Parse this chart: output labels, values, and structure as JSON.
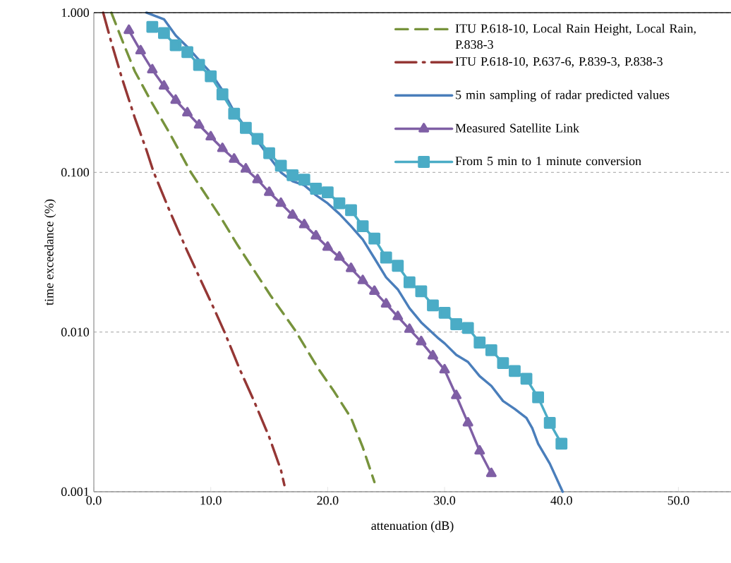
{
  "chart_data": {
    "type": "line",
    "xlabel": "attenuation (dB)",
    "ylabel": "time exceedance (%)",
    "log": "y",
    "grid": "y",
    "legend": "top right",
    "xlim": [
      0,
      54.5
    ],
    "ylim": [
      0.001,
      1
    ],
    "xticks": [
      {
        "value": 0,
        "label": "0.0"
      },
      {
        "value": 10,
        "label": "10.0"
      },
      {
        "value": 20,
        "label": "20.0"
      },
      {
        "value": 30,
        "label": "30.0"
      },
      {
        "value": 40,
        "label": "40.0"
      },
      {
        "value": 50,
        "label": "50.0"
      }
    ],
    "yticks": [
      {
        "value": 0.001,
        "label": "0.001"
      },
      {
        "value": 0.01,
        "label": "0.010"
      },
      {
        "value": 0.1,
        "label": "0.100"
      },
      {
        "value": 1,
        "label": "1.000"
      }
    ],
    "series": [
      {
        "name": "ITU P.618-10, Local Rain Height, Local Rain, P.838-3",
        "color": "#77933c",
        "line_style": "dashed",
        "marker": "none",
        "x": [
          1.5,
          2.5,
          3.5,
          5,
          6.5,
          8.3,
          10.8,
          12.3,
          15.1,
          17.2,
          19.2,
          20.5,
          22,
          23,
          24
        ],
        "values": [
          1,
          0.65,
          0.43,
          0.27,
          0.175,
          0.1,
          0.053,
          0.035,
          0.017,
          0.0103,
          0.0059,
          0.0043,
          0.0029,
          0.0019,
          0.00115
        ]
      },
      {
        "name": "ITU P.618-10, P.637-6, P.839-3, P.838-3",
        "color": "#953735",
        "line_style": "dashdot",
        "marker": "none",
        "x": [
          0.8,
          1.5,
          2.4,
          3.5,
          4.5,
          5.1,
          6.5,
          8,
          10.3,
          11.2,
          12.5,
          13.7,
          15,
          16,
          16.3
        ],
        "values": [
          1,
          0.65,
          0.39,
          0.22,
          0.138,
          0.101,
          0.057,
          0.032,
          0.0139,
          0.0099,
          0.0058,
          0.0037,
          0.0022,
          0.00137,
          0.0011
        ]
      },
      {
        "name": "5 min sampling of radar predicted values",
        "color": "#4a7ebb",
        "line_style": "solid",
        "marker": "none",
        "x": [
          4.5,
          6,
          7,
          8,
          9,
          10,
          11,
          12,
          13,
          14,
          15,
          16,
          17,
          18,
          19,
          20,
          21,
          22,
          23,
          24,
          25,
          26,
          27,
          28,
          29.5,
          30,
          31,
          32,
          33,
          34,
          35,
          36,
          37,
          37.5,
          38,
          39,
          40.1
        ],
        "values": [
          1,
          0.91,
          0.72,
          0.61,
          0.505,
          0.42,
          0.327,
          0.24,
          0.19,
          0.157,
          0.125,
          0.1,
          0.088,
          0.083,
          0.072,
          0.064,
          0.055,
          0.046,
          0.038,
          0.029,
          0.022,
          0.0185,
          0.0141,
          0.0115,
          0.0091,
          0.0085,
          0.0072,
          0.0065,
          0.0053,
          0.0046,
          0.0037,
          0.0033,
          0.0029,
          0.0025,
          0.002,
          0.0015,
          0.001
        ]
      },
      {
        "name": "Measured Satellite Link",
        "color": "#7f5fa5",
        "line_style": "solid",
        "marker": "triangle",
        "x": [
          3,
          4,
          5,
          6,
          7,
          8,
          9,
          10,
          11,
          12,
          13,
          14,
          15,
          16,
          17,
          18,
          19,
          20,
          21,
          22,
          23,
          24,
          25,
          26,
          27,
          28,
          29,
          30,
          31,
          32,
          33,
          34
        ],
        "values": [
          0.775,
          0.577,
          0.439,
          0.347,
          0.283,
          0.236,
          0.198,
          0.167,
          0.141,
          0.121,
          0.105,
          0.09,
          0.075,
          0.064,
          0.054,
          0.047,
          0.04,
          0.034,
          0.0295,
          0.025,
          0.021,
          0.018,
          0.015,
          0.0125,
          0.0104,
          0.0087,
          0.0071,
          0.0058,
          0.004,
          0.0027,
          0.0018,
          0.0013
        ]
      },
      {
        "name": "From 5 min to 1 minute conversion",
        "color": "#4bacc6",
        "line_style": "solid",
        "marker": "square",
        "x": [
          5,
          6,
          7,
          8,
          9,
          10,
          11,
          12,
          13,
          14,
          15,
          16,
          17,
          18,
          19,
          20,
          21,
          22,
          23,
          24,
          25,
          26,
          27,
          28,
          29,
          30,
          31,
          32,
          33,
          34,
          35,
          36,
          37,
          38,
          39,
          40
        ],
        "values": [
          0.815,
          0.745,
          0.626,
          0.566,
          0.471,
          0.4,
          0.308,
          0.233,
          0.19,
          0.162,
          0.132,
          0.11,
          0.096,
          0.09,
          0.079,
          0.075,
          0.064,
          0.058,
          0.046,
          0.0385,
          0.0293,
          0.026,
          0.0205,
          0.018,
          0.0147,
          0.0132,
          0.0112,
          0.0106,
          0.0086,
          0.0077,
          0.0064,
          0.0057,
          0.0051,
          0.0039,
          0.0027,
          0.002
        ]
      }
    ]
  }
}
